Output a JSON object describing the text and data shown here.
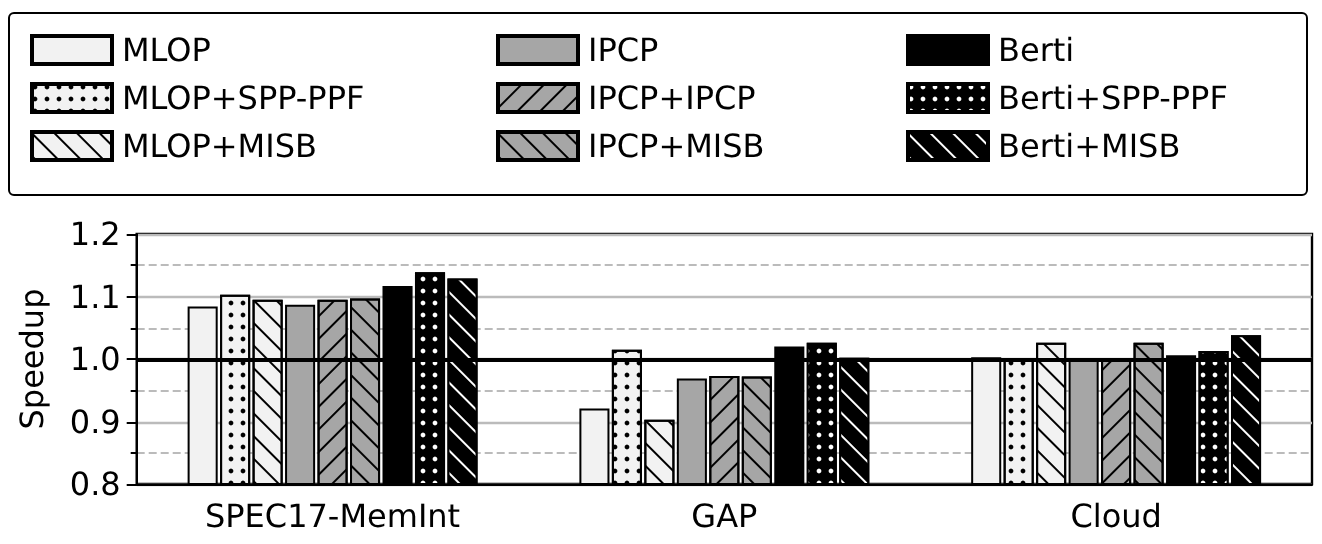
{
  "chart_data": {
    "type": "bar",
    "ylabel": "Speedup",
    "categories": [
      "SPEC17-MemInt",
      "GAP",
      "Cloud"
    ],
    "series": [
      {
        "name": "MLOP",
        "color": "#f2f2f2",
        "values": [
          1.084,
          0.921,
          1.003
        ]
      },
      {
        "name": "MLOP+SPP-PPF",
        "color": "#f2f2f2",
        "values": [
          1.103,
          1.015,
          1.0
        ]
      },
      {
        "name": "MLOP+MISB",
        "color": "#f2f2f2",
        "values": [
          1.095,
          0.903,
          1.026
        ]
      },
      {
        "name": "IPCP",
        "color": "#a6a6a6",
        "values": [
          1.087,
          0.969,
          0.999
        ]
      },
      {
        "name": "IPCP+IPCP",
        "color": "#a6a6a6",
        "values": [
          1.095,
          0.973,
          0.999
        ]
      },
      {
        "name": "IPCP+MISB",
        "color": "#a6a6a6",
        "values": [
          1.097,
          0.972,
          1.026
        ]
      },
      {
        "name": "Berti",
        "color": "#000000",
        "values": [
          1.117,
          1.02,
          1.006
        ]
      },
      {
        "name": "Berti+SPP-PPF",
        "color": "#000000",
        "values": [
          1.139,
          1.026,
          1.013
        ]
      },
      {
        "name": "Berti+MISB",
        "color": "#000000",
        "values": [
          1.129,
          1.002,
          1.038
        ]
      }
    ],
    "ylim": [
      0.8,
      1.2
    ],
    "yticks": [
      0.8,
      {
        "value": 0.85,
        "label": null
      },
      0.9,
      {
        "value": 0.95,
        "label": null
      },
      {
        "value": 1.0,
        "label": "1.0"
      },
      {
        "value": 1.05,
        "label": null
      },
      1.1,
      {
        "value": 1.15,
        "label": null
      },
      1.2
    ],
    "grid": "y",
    "legend": "top",
    "ref_lines": [
      {
        "axis": "y",
        "value": 1.0,
        "label": null,
        "color": "#000000",
        "line_style": "solid"
      }
    ]
  }
}
